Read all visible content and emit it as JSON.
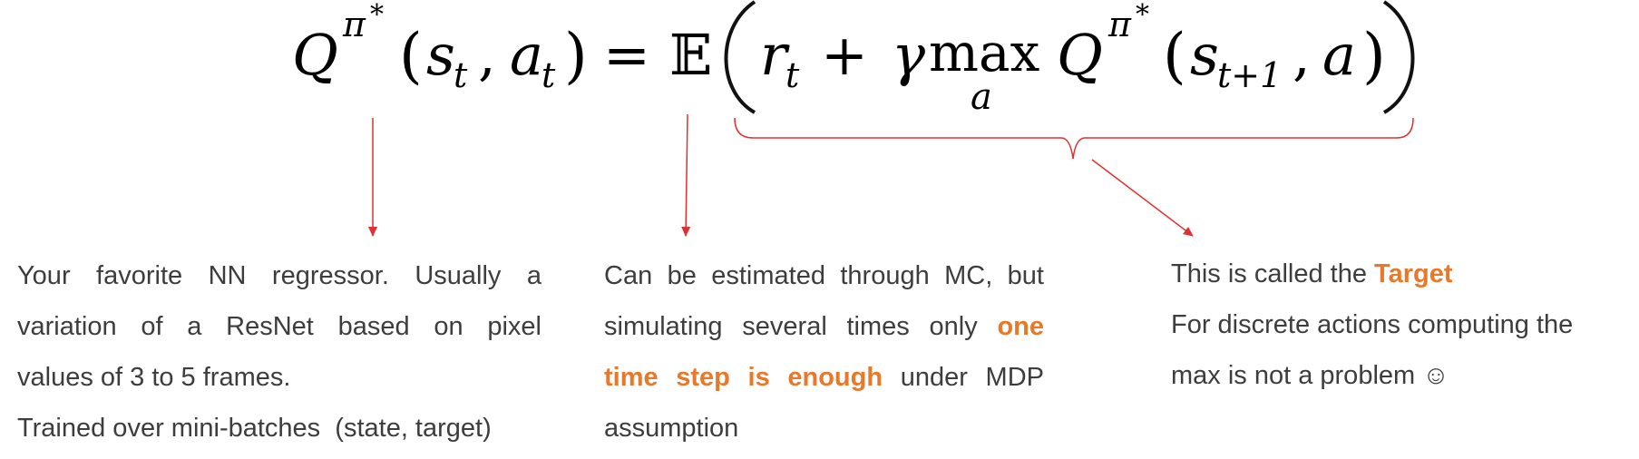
{
  "formula": {
    "lhs_q": "Q",
    "pi": "π",
    "star": "*",
    "s": "s",
    "a": "a",
    "sub_t": "t",
    "sub_t1": "t+1",
    "equals": "=",
    "expectation": "𝔼",
    "r": "r",
    "plus": "+",
    "gamma": "γ",
    "max": "max",
    "max_sub": "a",
    "open_paren": "(",
    "close_paren": ")",
    "comma": ","
  },
  "annotations": {
    "left": {
      "line1": "Your favorite NN regressor. Usually a",
      "line2": "variation of a ResNet based on pixel",
      "line3": "values of 3 to 5 frames.",
      "line4": "Trained over mini-batches  (state, target)"
    },
    "middle": {
      "line1": "Can be estimated through MC, but",
      "line2_pre": "simulating several times only ",
      "line2_highlight": "one",
      "line3_highlight": "time step is enough",
      "line3_post": " under MDP",
      "line4": "assumption"
    },
    "right": {
      "line1_pre": "This is called the ",
      "line1_highlight": "Target",
      "line2": "For discrete actions computing the",
      "line3": "max is not a problem ☺"
    }
  },
  "colors": {
    "arrow": "#e03030",
    "highlight": "#e8782a",
    "text": "#3d3d3d"
  }
}
